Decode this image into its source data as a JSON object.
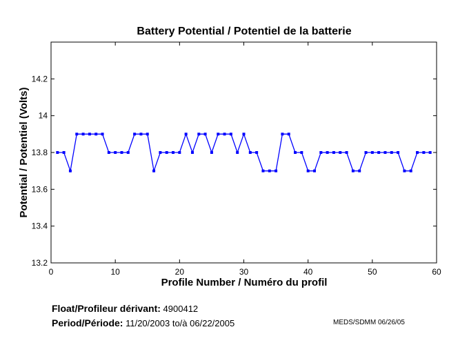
{
  "chart_data": {
    "type": "line",
    "title": "Battery Potential / Potentiel de la batterie",
    "xlabel": "Profile Number / Numéro du profil",
    "ylabel": "Potential / Potentiel (Volts)",
    "xlim": [
      0,
      60
    ],
    "ylim": [
      13.2,
      14.4
    ],
    "xticks": [
      0,
      10,
      20,
      30,
      40,
      50,
      60
    ],
    "yticks": [
      13.2,
      13.4,
      13.6,
      13.8,
      14,
      14.2
    ],
    "ytick_labels": [
      "13.2",
      "13.4",
      "13.6",
      "13.8",
      "14",
      "14.2"
    ],
    "grid": false,
    "color": "#0000ff",
    "x": [
      1,
      2,
      3,
      4,
      5,
      6,
      7,
      8,
      9,
      10,
      11,
      12,
      13,
      14,
      15,
      16,
      17,
      18,
      19,
      20,
      21,
      22,
      23,
      24,
      25,
      26,
      27,
      28,
      29,
      30,
      31,
      32,
      33,
      34,
      35,
      36,
      37,
      38,
      39,
      40,
      41,
      42,
      43,
      44,
      45,
      46,
      47,
      48,
      49,
      50,
      51,
      52,
      53,
      54,
      55,
      56,
      57,
      58,
      59
    ],
    "y": [
      13.8,
      13.8,
      13.7,
      13.9,
      13.9,
      13.9,
      13.9,
      13.9,
      13.8,
      13.8,
      13.8,
      13.8,
      13.9,
      13.9,
      13.9,
      13.7,
      13.8,
      13.8,
      13.8,
      13.8,
      13.9,
      13.8,
      13.9,
      13.9,
      13.8,
      13.9,
      13.9,
      13.9,
      13.8,
      13.9,
      13.8,
      13.8,
      13.7,
      13.7,
      13.7,
      13.9,
      13.9,
      13.8,
      13.8,
      13.7,
      13.7,
      13.8,
      13.8,
      13.8,
      13.8,
      13.8,
      13.7,
      13.7,
      13.8,
      13.8,
      13.8,
      13.8,
      13.8,
      13.8,
      13.7,
      13.7,
      13.8,
      13.8,
      13.8
    ]
  },
  "footer": {
    "float_label": "Float/Profileur dérivant:",
    "float_value": "4900412",
    "period_label": "Period/Période:",
    "period_start": "11/20/2003",
    "period_to": "to/à",
    "period_end": "06/22/2005",
    "credit": "MEDS/SDMM  06/26/05"
  }
}
